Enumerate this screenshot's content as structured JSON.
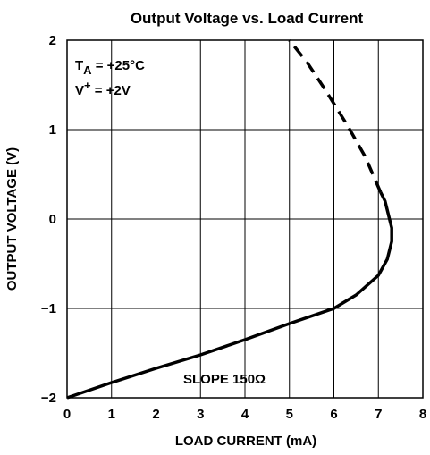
{
  "chart_data": {
    "type": "line",
    "title": "Output Voltage vs. Load Current",
    "xlabel": "LOAD CURRENT (mA)",
    "ylabel": "OUTPUT VOLTAGE (V)",
    "xlim": [
      0,
      8
    ],
    "xticks": [
      0,
      1,
      2,
      3,
      4,
      5,
      6,
      7,
      8
    ],
    "ylim": [
      -2,
      2
    ],
    "yticks": [
      {
        "value": -2,
        "label": "−2"
      },
      {
        "value": -1,
        "label": "−1"
      },
      0,
      1,
      2
    ],
    "grid": true,
    "annotations": [
      {
        "parts": [
          "T",
          "A",
          " = +25°C"
        ],
        "styles": [
          "normal",
          "sub",
          "normal"
        ]
      },
      {
        "parts": [
          "V",
          "+",
          " = +2V"
        ],
        "styles": [
          "normal",
          "super",
          "normal"
        ]
      },
      {
        "parts": [
          "SLOPE 150Ω"
        ],
        "styles": [
          "normal"
        ]
      }
    ],
    "series": [
      {
        "color": "#000000",
        "dash": false,
        "x": [
          0,
          1,
          2,
          3,
          4,
          5,
          6,
          6.5,
          7,
          7.2,
          7.3,
          7.3,
          7.25,
          7.15,
          7.05
        ],
        "values": [
          -2,
          -1.83,
          -1.67,
          -1.52,
          -1.35,
          -1.17,
          -1.0,
          -0.85,
          -0.63,
          -0.45,
          -0.25,
          -0.1,
          0,
          0.2,
          0.3
        ]
      },
      {
        "color": "#000000",
        "dash": true,
        "x": [
          7.05,
          6.7,
          6.3,
          5.8,
          5.4,
          5
        ],
        "values": [
          0.3,
          0.7,
          1.05,
          1.45,
          1.75,
          2
        ]
      }
    ]
  }
}
